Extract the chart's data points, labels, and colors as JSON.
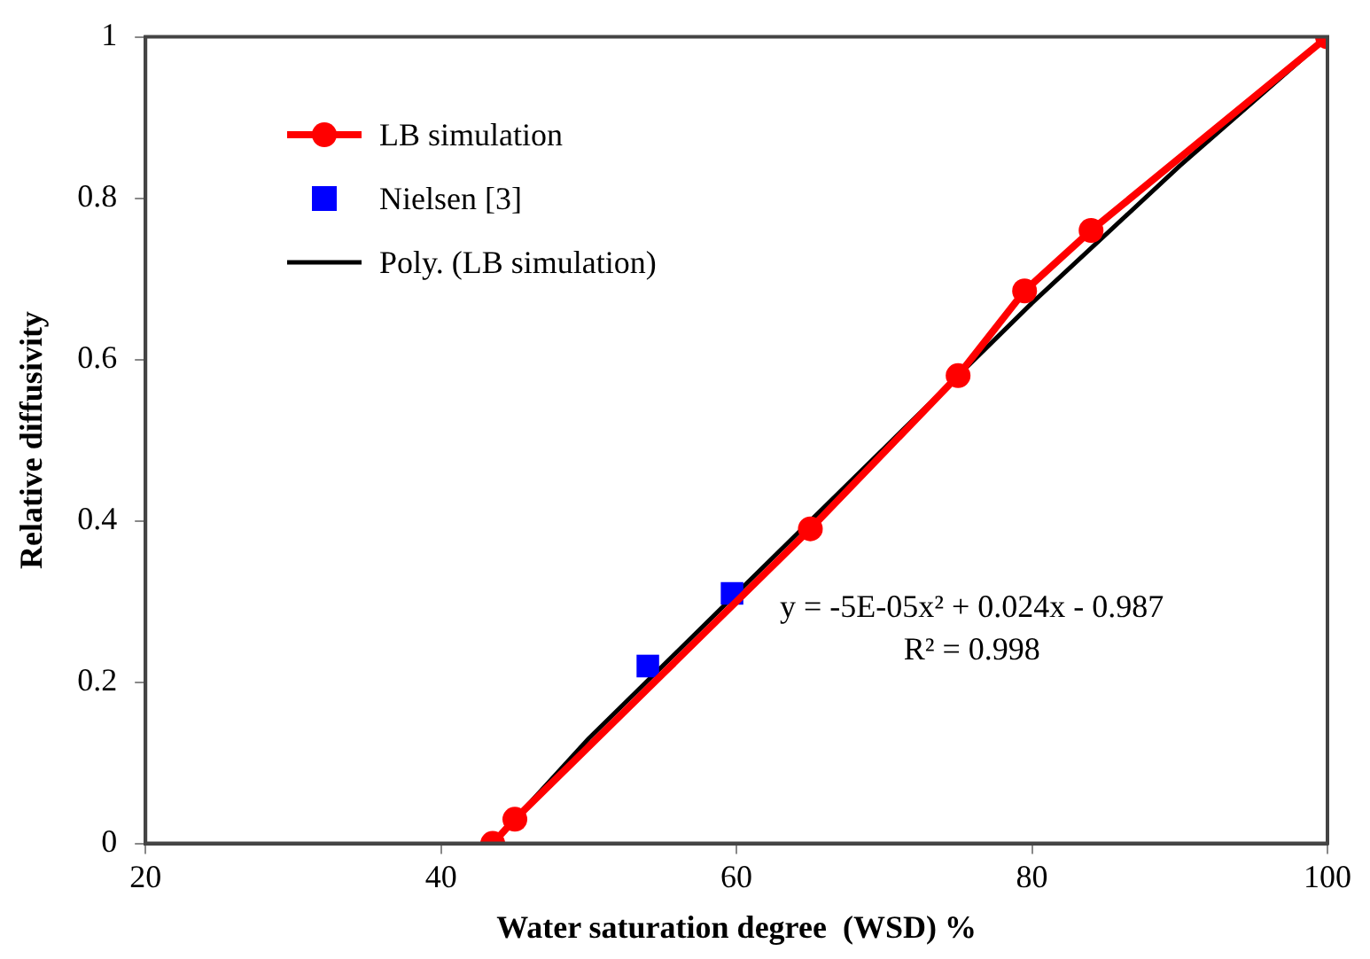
{
  "chart_data": {
    "type": "line",
    "xlabel": "Water saturation degree  (WSD) %",
    "ylabel": "Relative diffusivity",
    "xlim": [
      20,
      100
    ],
    "xticks": [
      20,
      40,
      60,
      80,
      100
    ],
    "ylim": [
      0,
      1
    ],
    "yticks": [
      0,
      0.2,
      0.4,
      0.6,
      0.8,
      1
    ],
    "grid": false,
    "legend": "top left",
    "series": [
      {
        "name": "LB simulation",
        "marker": "circle",
        "color": "#ff0000",
        "x": [
          43.5,
          45,
          65,
          75,
          79.5,
          84,
          100
        ],
        "values": [
          0,
          0.03,
          0.39,
          0.58,
          0.685,
          0.76,
          1
        ]
      },
      {
        "name": "Nielsen [3]",
        "type": "scatter",
        "marker": "square",
        "color": "#0000ff",
        "x": [
          54,
          59.7
        ],
        "values": [
          0.22,
          0.31
        ]
      },
      {
        "name": "Poly. (LB simulation)",
        "marker": "none",
        "color": "#000000",
        "x": [
          43.5,
          50,
          60,
          70,
          80,
          90,
          100
        ],
        "values": [
          0,
          0.13,
          0.31,
          0.49,
          0.67,
          0.84,
          1
        ]
      }
    ],
    "annotations": [
      "y = -5E-05x² + 0.024x - 0.987",
      "R² = 0.998"
    ]
  }
}
